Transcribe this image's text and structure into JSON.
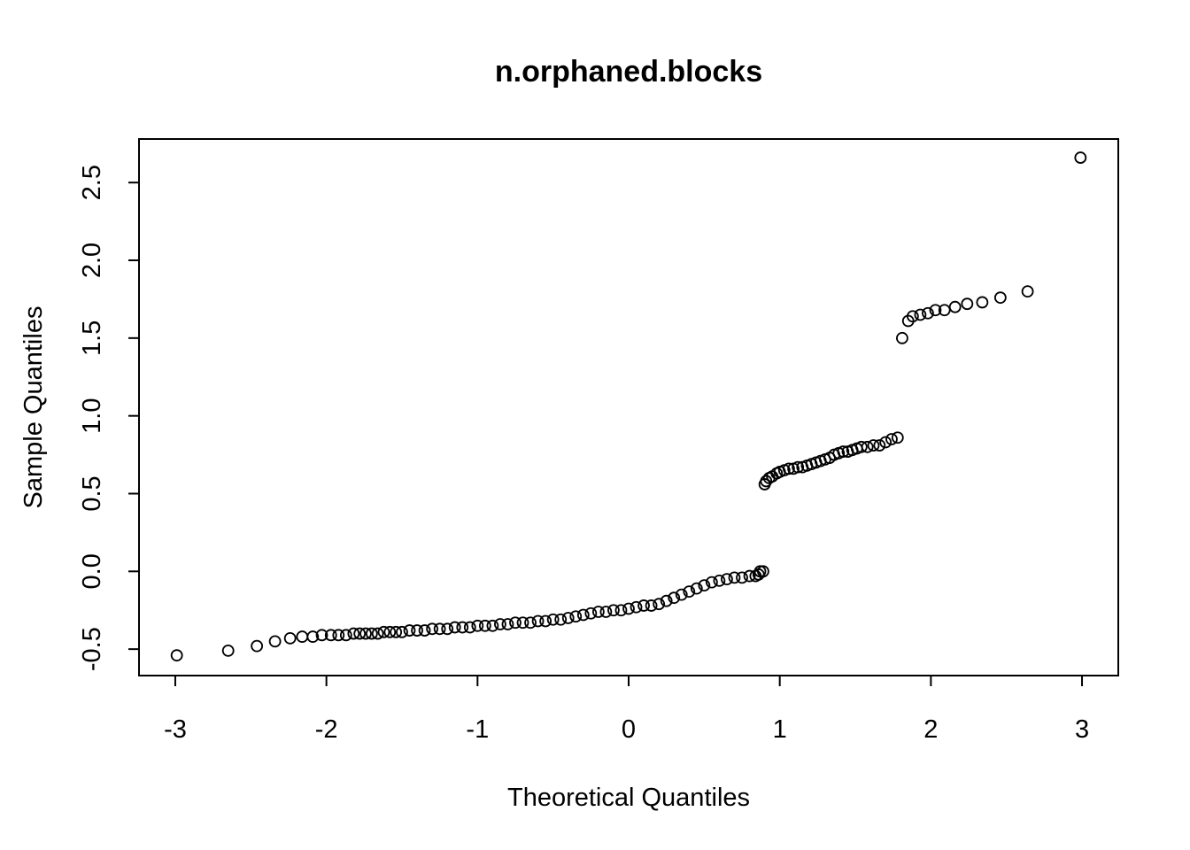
{
  "chart_data": {
    "type": "scatter",
    "title": "n.orphaned.blocks",
    "xlabel": "Theoretical Quantiles",
    "ylabel": "Sample Quantiles",
    "xlim": [
      -3.24,
      3.24
    ],
    "ylim": [
      -0.67,
      2.78
    ],
    "xticks": [
      -3,
      -2,
      -1,
      0,
      1,
      2,
      3
    ],
    "yticks": [
      -0.5,
      0.0,
      0.5,
      1.0,
      1.5,
      2.0,
      2.5
    ],
    "xtick_labels": [
      "-3",
      "-2",
      "-1",
      "0",
      "1",
      "2",
      "3"
    ],
    "ytick_labels": [
      "-0.5",
      "0.0",
      "0.5",
      "1.0",
      "1.5",
      "2.0",
      "2.5"
    ],
    "grid": false,
    "legend": "none",
    "marker": "open-circle",
    "color": "#000000",
    "points": [
      [
        -2.99,
        -0.54
      ],
      [
        -2.65,
        -0.51
      ],
      [
        -2.46,
        -0.48
      ],
      [
        -2.34,
        -0.45
      ],
      [
        -2.24,
        -0.43
      ],
      [
        -2.16,
        -0.42
      ],
      [
        -2.09,
        -0.42
      ],
      [
        -2.03,
        -0.41
      ],
      [
        -1.97,
        -0.41
      ],
      [
        -1.92,
        -0.41
      ],
      [
        -1.87,
        -0.41
      ],
      [
        -1.82,
        -0.4
      ],
      [
        -1.78,
        -0.4
      ],
      [
        -1.74,
        -0.4
      ],
      [
        -1.7,
        -0.4
      ],
      [
        -1.66,
        -0.4
      ],
      [
        -1.62,
        -0.39
      ],
      [
        -1.58,
        -0.39
      ],
      [
        -1.54,
        -0.39
      ],
      [
        -1.5,
        -0.39
      ],
      [
        -1.45,
        -0.38
      ],
      [
        -1.4,
        -0.38
      ],
      [
        -1.35,
        -0.38
      ],
      [
        -1.3,
        -0.37
      ],
      [
        -1.25,
        -0.37
      ],
      [
        -1.2,
        -0.37
      ],
      [
        -1.15,
        -0.36
      ],
      [
        -1.1,
        -0.36
      ],
      [
        -1.05,
        -0.36
      ],
      [
        -1.0,
        -0.35
      ],
      [
        -0.95,
        -0.35
      ],
      [
        -0.9,
        -0.35
      ],
      [
        -0.85,
        -0.34
      ],
      [
        -0.8,
        -0.34
      ],
      [
        -0.75,
        -0.33
      ],
      [
        -0.7,
        -0.33
      ],
      [
        -0.65,
        -0.33
      ],
      [
        -0.6,
        -0.32
      ],
      [
        -0.55,
        -0.32
      ],
      [
        -0.5,
        -0.31
      ],
      [
        -0.45,
        -0.31
      ],
      [
        -0.4,
        -0.3
      ],
      [
        -0.35,
        -0.29
      ],
      [
        -0.3,
        -0.28
      ],
      [
        -0.25,
        -0.27
      ],
      [
        -0.2,
        -0.26
      ],
      [
        -0.15,
        -0.26
      ],
      [
        -0.1,
        -0.25
      ],
      [
        -0.05,
        -0.25
      ],
      [
        0.0,
        -0.24
      ],
      [
        0.05,
        -0.23
      ],
      [
        0.1,
        -0.22
      ],
      [
        0.15,
        -0.22
      ],
      [
        0.2,
        -0.21
      ],
      [
        0.25,
        -0.19
      ],
      [
        0.3,
        -0.17
      ],
      [
        0.35,
        -0.15
      ],
      [
        0.4,
        -0.13
      ],
      [
        0.45,
        -0.11
      ],
      [
        0.5,
        -0.09
      ],
      [
        0.55,
        -0.07
      ],
      [
        0.6,
        -0.06
      ],
      [
        0.65,
        -0.05
      ],
      [
        0.7,
        -0.04
      ],
      [
        0.75,
        -0.04
      ],
      [
        0.8,
        -0.03
      ],
      [
        0.84,
        -0.03
      ],
      [
        0.86,
        -0.02
      ],
      [
        0.87,
        0.0
      ],
      [
        0.89,
        0.0
      ],
      [
        0.9,
        0.56
      ],
      [
        0.91,
        0.58
      ],
      [
        0.93,
        0.6
      ],
      [
        0.95,
        0.61
      ],
      [
        0.98,
        0.63
      ],
      [
        1.0,
        0.64
      ],
      [
        1.03,
        0.65
      ],
      [
        1.06,
        0.66
      ],
      [
        1.09,
        0.66
      ],
      [
        1.12,
        0.67
      ],
      [
        1.15,
        0.67
      ],
      [
        1.18,
        0.68
      ],
      [
        1.21,
        0.69
      ],
      [
        1.24,
        0.7
      ],
      [
        1.27,
        0.71
      ],
      [
        1.3,
        0.72
      ],
      [
        1.33,
        0.73
      ],
      [
        1.36,
        0.75
      ],
      [
        1.39,
        0.76
      ],
      [
        1.42,
        0.77
      ],
      [
        1.45,
        0.77
      ],
      [
        1.48,
        0.78
      ],
      [
        1.51,
        0.79
      ],
      [
        1.54,
        0.8
      ],
      [
        1.58,
        0.8
      ],
      [
        1.62,
        0.81
      ],
      [
        1.66,
        0.81
      ],
      [
        1.7,
        0.83
      ],
      [
        1.74,
        0.85
      ],
      [
        1.78,
        0.86
      ],
      [
        1.81,
        1.5
      ],
      [
        1.85,
        1.61
      ],
      [
        1.88,
        1.64
      ],
      [
        1.93,
        1.65
      ],
      [
        1.98,
        1.66
      ],
      [
        2.03,
        1.68
      ],
      [
        2.09,
        1.68
      ],
      [
        2.16,
        1.7
      ],
      [
        2.24,
        1.72
      ],
      [
        2.34,
        1.73
      ],
      [
        2.46,
        1.76
      ],
      [
        2.64,
        1.8
      ],
      [
        2.99,
        2.66
      ]
    ]
  }
}
